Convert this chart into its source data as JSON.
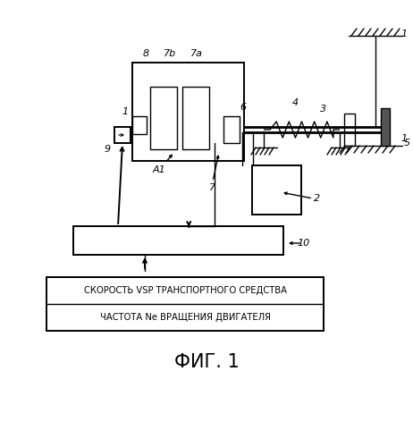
{
  "bg_color": "#ffffff",
  "title": "ФИГ. 1",
  "title_fontsize": 15,
  "info_box_line1": "СКОРОСТЬ VSP ТРАНСПОРТНОГО СРЕДСТВА",
  "info_box_line2": "ЧАСТОТА Ne ВРАЩЕНИЯ ДВИГАТЕЛЯ",
  "info_font_size": 7.2
}
